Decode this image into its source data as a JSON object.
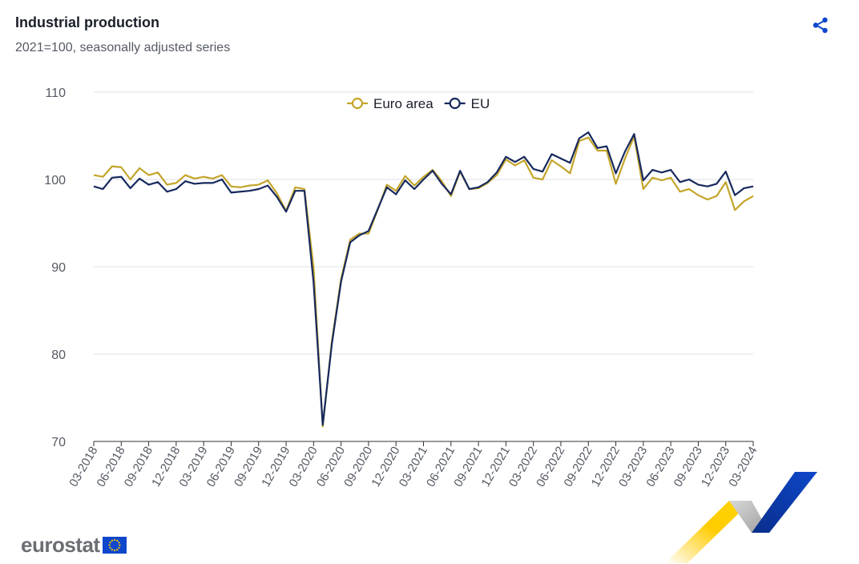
{
  "header": {
    "title": "Industrial production",
    "subtitle": "2021=100, seasonally adjusted series",
    "share_icon": "share-icon"
  },
  "brand": {
    "logo_text": "eurostat",
    "flag_icon": "eu-flag-icon",
    "colors": {
      "blue": "#0e47cb",
      "yellow": "#ffcc00",
      "grey": "#b7b7b7"
    }
  },
  "chart_data": {
    "type": "line",
    "title": "Industrial production",
    "subtitle": "2021=100, seasonally adjusted series",
    "xlabel": "",
    "ylabel": "",
    "ylim": [
      70,
      110
    ],
    "yticks": [
      70,
      80,
      90,
      100,
      110
    ],
    "grid": true,
    "legend_position": "top-center",
    "x": [
      "03-2018",
      "04-2018",
      "05-2018",
      "06-2018",
      "07-2018",
      "08-2018",
      "09-2018",
      "10-2018",
      "11-2018",
      "12-2018",
      "01-2019",
      "02-2019",
      "03-2019",
      "04-2019",
      "05-2019",
      "06-2019",
      "07-2019",
      "08-2019",
      "09-2019",
      "10-2019",
      "11-2019",
      "12-2019",
      "01-2020",
      "02-2020",
      "03-2020",
      "04-2020",
      "05-2020",
      "06-2020",
      "07-2020",
      "08-2020",
      "09-2020",
      "10-2020",
      "11-2020",
      "12-2020",
      "01-2021",
      "02-2021",
      "03-2021",
      "04-2021",
      "05-2021",
      "06-2021",
      "07-2021",
      "08-2021",
      "09-2021",
      "10-2021",
      "11-2021",
      "12-2021",
      "01-2022",
      "02-2022",
      "03-2022",
      "04-2022",
      "05-2022",
      "06-2022",
      "07-2022",
      "08-2022",
      "09-2022",
      "10-2022",
      "11-2022",
      "12-2022",
      "01-2023",
      "02-2023",
      "03-2023",
      "04-2023",
      "05-2023",
      "06-2023",
      "07-2023",
      "08-2023",
      "09-2023",
      "10-2023",
      "11-2023",
      "12-2023",
      "01-2024",
      "02-2024",
      "03-2024"
    ],
    "xtick_labels": [
      "03-2018",
      "06-2018",
      "09-2018",
      "12-2018",
      "03-2019",
      "06-2019",
      "09-2019",
      "12-2019",
      "03-2020",
      "06-2020",
      "09-2020",
      "12-2020",
      "03-2021",
      "06-2021",
      "09-2021",
      "12-2021",
      "03-2022",
      "06-2022",
      "09-2022",
      "12-2022",
      "03-2023",
      "06-2023",
      "09-2023",
      "12-2023",
      "03-2024"
    ],
    "series": [
      {
        "name": "Euro area",
        "color": "#c4a52b",
        "values": [
          100.5,
          100.3,
          101.5,
          101.4,
          100.0,
          101.3,
          100.5,
          100.8,
          99.4,
          99.6,
          100.5,
          100.1,
          100.3,
          100.1,
          100.5,
          99.2,
          99.1,
          99.3,
          99.4,
          99.9,
          98.4,
          96.4,
          99.1,
          98.9,
          89.9,
          71.7,
          81.5,
          88.6,
          93.1,
          93.8,
          93.8,
          96.5,
          99.4,
          98.7,
          100.4,
          99.3,
          100.3,
          101.1,
          99.8,
          98.1,
          100.9,
          98.9,
          99.0,
          99.6,
          100.5,
          102.3,
          101.6,
          102.2,
          100.2,
          100.0,
          102.2,
          101.5,
          100.7,
          104.4,
          104.8,
          103.3,
          103.3,
          99.5,
          102.4,
          104.9,
          98.9,
          100.2,
          99.9,
          100.2,
          98.6,
          98.9,
          98.2,
          97.7,
          98.1,
          99.7,
          96.5,
          97.5,
          98.1
        ]
      },
      {
        "name": "EU",
        "color": "#17295e",
        "values": [
          99.2,
          98.9,
          100.2,
          100.3,
          99.0,
          100.1,
          99.4,
          99.7,
          98.6,
          98.9,
          99.8,
          99.5,
          99.6,
          99.6,
          100.0,
          98.5,
          98.6,
          98.7,
          98.9,
          99.3,
          98.0,
          96.3,
          98.7,
          98.7,
          88.2,
          71.9,
          81.2,
          88.3,
          92.8,
          93.6,
          94.1,
          96.6,
          99.1,
          98.3,
          99.9,
          98.9,
          100.0,
          101.0,
          99.5,
          98.3,
          101.0,
          98.9,
          99.1,
          99.7,
          100.8,
          102.6,
          102.0,
          102.6,
          101.2,
          100.9,
          102.9,
          102.4,
          101.9,
          104.7,
          105.4,
          103.6,
          103.8,
          100.7,
          103.2,
          105.2,
          99.9,
          101.1,
          100.8,
          101.1,
          99.7,
          100.0,
          99.4,
          99.2,
          99.5,
          100.9,
          98.2,
          99.0,
          99.2
        ]
      }
    ]
  }
}
